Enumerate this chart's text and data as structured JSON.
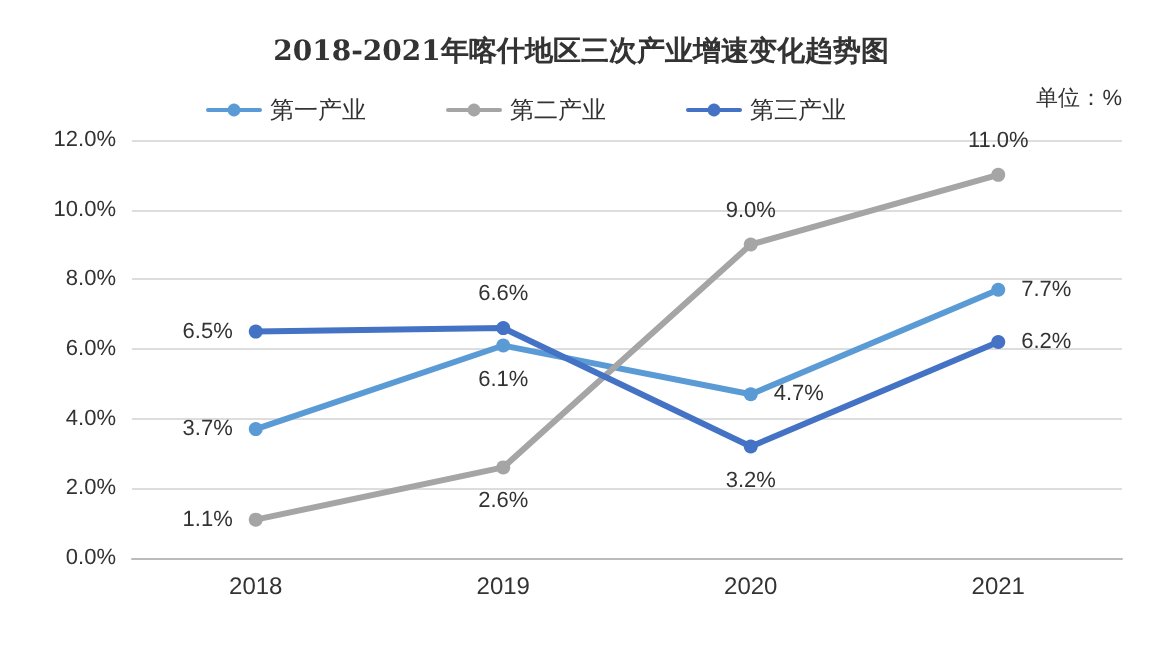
{
  "chart_data": {
    "type": "line",
    "title": "2018-2021年喀什地区三次产业增速变化趋势图",
    "annotations": [
      "单位：%"
    ],
    "categories": [
      "2018",
      "2019",
      "2020",
      "2021"
    ],
    "series": [
      {
        "name": "第一产业",
        "color": "#5b9bd5",
        "values": [
          3.7,
          6.1,
          4.7,
          7.7
        ],
        "value_labels": [
          "3.7%",
          "6.1%",
          "4.7%",
          "7.7%"
        ]
      },
      {
        "name": "第二产业",
        "color": "#a5a5a5",
        "values": [
          1.1,
          2.6,
          9.0,
          11.0
        ],
        "value_labels": [
          "1.1%",
          "2.6%",
          "9.0%",
          "11.0%"
        ]
      },
      {
        "name": "第三产业",
        "color": "#4472c4",
        "values": [
          6.5,
          6.6,
          3.2,
          6.2
        ],
        "value_labels": [
          "6.5%",
          "6.6%",
          "3.2%",
          "6.2%"
        ]
      }
    ],
    "ylim": [
      0,
      12
    ],
    "yticks": [
      {
        "value": 0,
        "label": "0.0%"
      },
      {
        "value": 2,
        "label": "2.0%"
      },
      {
        "value": 4,
        "label": "4.0%"
      },
      {
        "value": 6,
        "label": "6.0%"
      },
      {
        "value": 8,
        "label": "8.0%"
      },
      {
        "value": 10,
        "label": "10.0%"
      },
      {
        "value": 12,
        "label": "12.0%"
      }
    ],
    "grid": "y",
    "legend": "top left",
    "marker": "circle",
    "line_style": "solid"
  }
}
